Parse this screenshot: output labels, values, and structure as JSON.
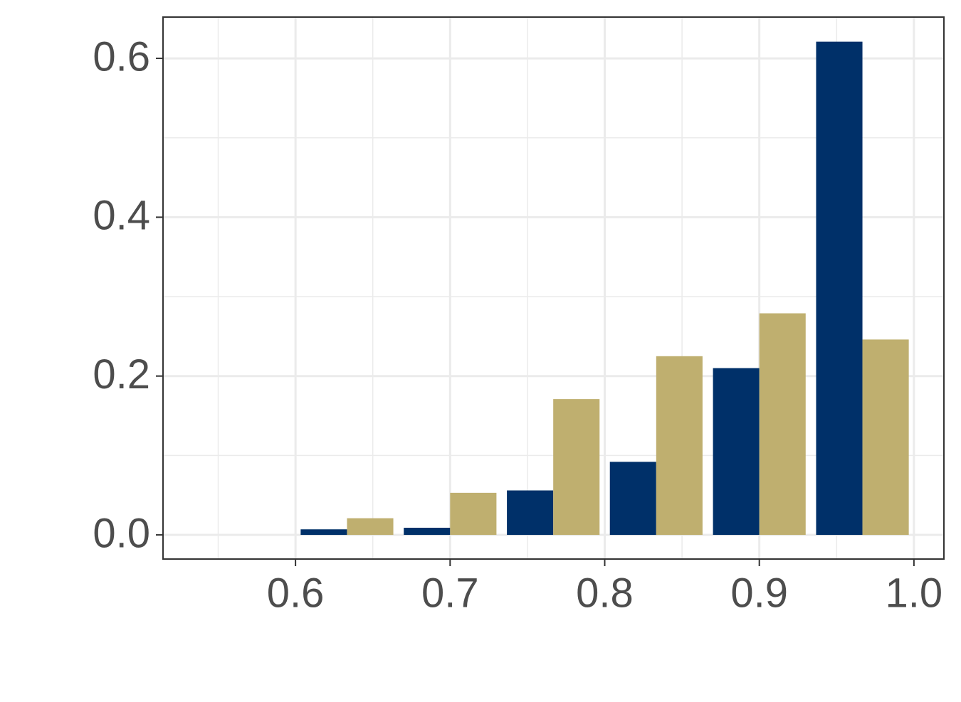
{
  "chart_data": {
    "type": "bar",
    "x": [
      0.5667,
      0.6333,
      0.7,
      0.7667,
      0.8333,
      0.9,
      0.9667
    ],
    "series": [
      {
        "color": "#003069",
        "values": [
          0,
          0.007,
          0.009,
          0.056,
          0.092,
          0.21,
          0.621
        ]
      },
      {
        "color": "#bfaf6f",
        "values": [
          0,
          0.021,
          0.053,
          0.171,
          0.225,
          0.279,
          0.246
        ]
      }
    ],
    "xlim": [
      0.5143,
      1.0194
    ],
    "xticks": [
      0.6,
      0.7,
      0.8,
      0.9,
      {
        "value": 1,
        "label": "1.0"
      }
    ],
    "ylim": [
      -0.0304,
      0.652
    ],
    "yticks": [
      {
        "value": 0,
        "label": "0.0"
      },
      0.2,
      0.4,
      0.6
    ],
    "grid": true
  }
}
